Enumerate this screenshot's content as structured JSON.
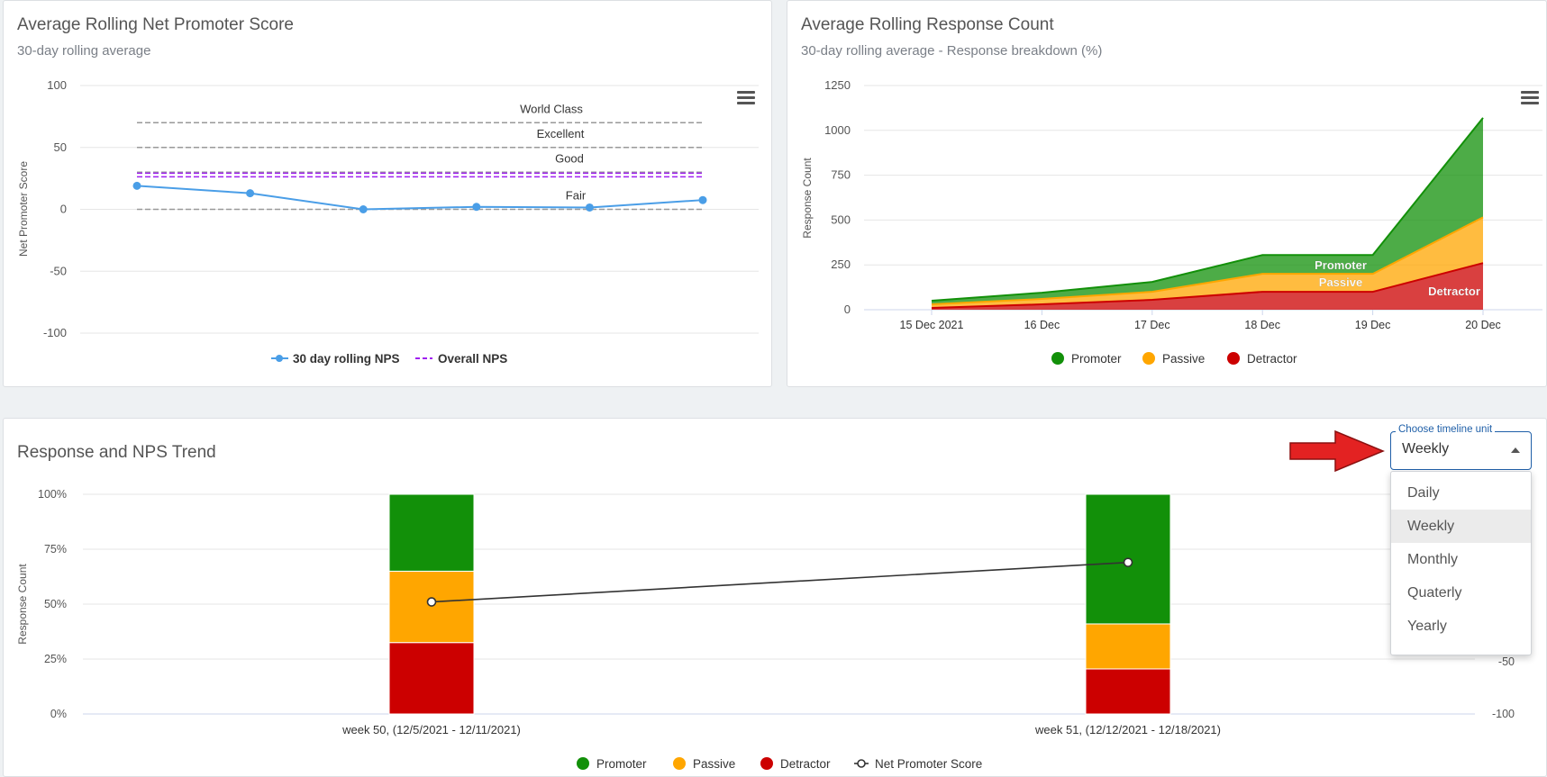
{
  "nps_card": {
    "title": "Average Rolling Net Promoter Score",
    "subtitle": "30-day rolling average"
  },
  "response_card": {
    "title": "Average Rolling Response Count",
    "subtitle": "30-day rolling average - Response breakdown (%)"
  },
  "trend_card": {
    "title": "Response and NPS Trend"
  },
  "timeline_select": {
    "label": "Choose timeline unit",
    "value": "Weekly",
    "options": [
      "Daily",
      "Weekly",
      "Monthly",
      "Quaterly",
      "Yearly"
    ]
  },
  "icons": {
    "chart_menu": "hamburger-menu-icon",
    "callout": "red-arrow-icon",
    "dropdown": "caret-up-icon"
  },
  "colors": {
    "promoter": "#129009",
    "passive": "#ffa600",
    "detractor": "#cc0000",
    "nps_line": "#4a9ee7",
    "overall_nps": "#a020f0",
    "select_accent": "#1f5fa8",
    "arrow": "#e32222"
  },
  "chart_data": [
    {
      "type": "line",
      "title": "Average Rolling Net Promoter Score",
      "subtitle": "30-day rolling average",
      "ylabel": "Net Promoter Score",
      "ylim": [
        -100,
        100
      ],
      "yticks": [
        100,
        50,
        0,
        -50,
        -100
      ],
      "series": [
        {
          "name": "30 day rolling NPS",
          "values": [
            19,
            13,
            0,
            2,
            1.5,
            7.5
          ]
        },
        {
          "name": "Overall NPS",
          "values": [
            27,
            27,
            27,
            27,
            27,
            27
          ]
        }
      ],
      "bands": [
        {
          "label": "World Class",
          "value": 70
        },
        {
          "label": "Excellent",
          "value": 50
        },
        {
          "label": "Good",
          "value": 30
        },
        {
          "label": "Fair",
          "value": 0
        }
      ],
      "legend": "bottom"
    },
    {
      "type": "area",
      "title": "Average Rolling Response Count",
      "subtitle": "30-day rolling average - Response breakdown (%)",
      "ylabel": "Response Count",
      "ylim": [
        0,
        1250
      ],
      "yticks": [
        1250,
        1000,
        750,
        500,
        250,
        0
      ],
      "categories": [
        "15 Dec 2021",
        "16 Dec",
        "17 Dec",
        "18 Dec",
        "19 Dec",
        "20 Dec"
      ],
      "series": [
        {
          "name": "Detractor",
          "values": [
            10,
            30,
            55,
            100,
            100,
            260
          ]
        },
        {
          "name": "Passive",
          "values": [
            20,
            30,
            45,
            100,
            100,
            255
          ]
        },
        {
          "name": "Promoter",
          "values": [
            20,
            35,
            55,
            105,
            105,
            555
          ]
        }
      ],
      "area_labels": [
        "Promoter",
        "Passive",
        "Detractor"
      ],
      "legend": [
        "Promoter",
        "Passive",
        "Detractor"
      ]
    },
    {
      "type": "bar",
      "title": "Response and NPS Trend",
      "ylabel": "Response Count",
      "yticks": [
        "100%",
        "75%",
        "50%",
        "25%",
        "0%"
      ],
      "right_yticks": [
        "-50",
        "-100"
      ],
      "categories": [
        "week 50, (12/5/2021 - 12/11/2021)",
        "week 51, (12/12/2021 - 12/18/2021)"
      ],
      "series": [
        {
          "name": "Detractor",
          "values": [
            32.5,
            20.5
          ]
        },
        {
          "name": "Passive",
          "values": [
            32.5,
            20.5
          ]
        },
        {
          "name": "Promoter",
          "values": [
            35,
            59
          ]
        }
      ],
      "line_series": {
        "name": "Net Promoter Score",
        "values": [
          51,
          69
        ]
      },
      "legend": [
        "Promoter",
        "Passive",
        "Detractor",
        "Net Promoter Score"
      ]
    }
  ]
}
